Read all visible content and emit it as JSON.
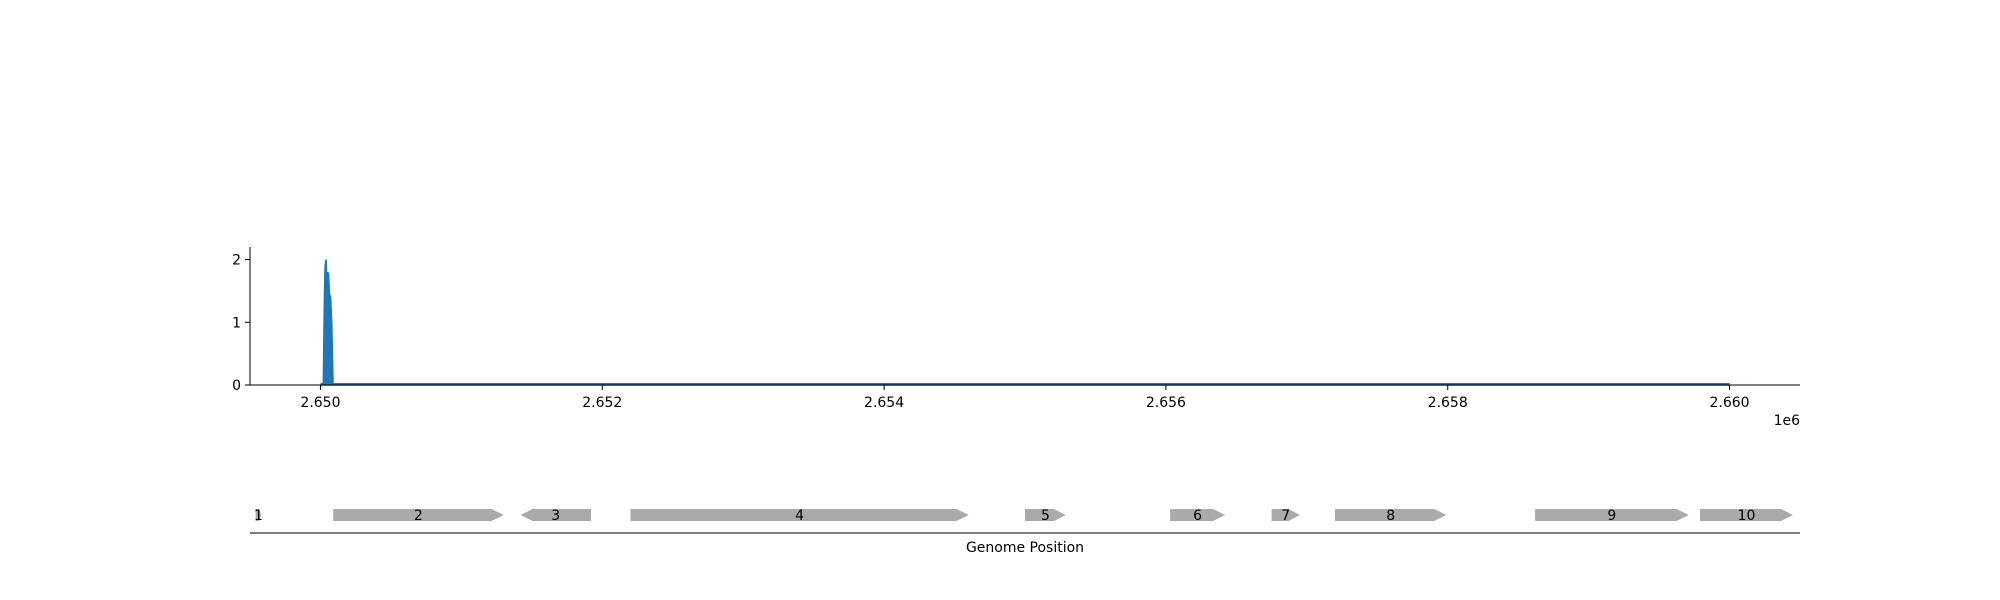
{
  "chart_data": [
    {
      "type": "area",
      "xlim": [
        2649500,
        2660500
      ],
      "ylim": [
        0,
        2.2
      ],
      "x_ticks": [
        2650000,
        2652000,
        2654000,
        2656000,
        2658000,
        2660000
      ],
      "x_tick_labels": [
        "2.650",
        "2.652",
        "2.654",
        "2.656",
        "2.658",
        "2.660"
      ],
      "x_offset_label": "1e6",
      "y_ticks": [
        0,
        1,
        2
      ],
      "y_tick_labels": [
        "0",
        "1",
        "2"
      ],
      "grid": false,
      "color": "#1f77b4",
      "series": [
        {
          "x": [
            2650000,
            2650020,
            2650028,
            2650033,
            2650040,
            2650046,
            2650052,
            2650058,
            2650064,
            2650072,
            2650080,
            2650090,
            2650100,
            2660000
          ],
          "values": [
            0,
            0,
            1.4,
            1.9,
            2.0,
            1.6,
            1.8,
            1.75,
            1.45,
            1.4,
            1.0,
            0,
            0,
            0
          ]
        }
      ]
    },
    {
      "type": "gene_track",
      "xlabel": "Genome Position",
      "xlim": [
        2649500,
        2660500
      ],
      "color": "#aaaaaa",
      "genes": [
        {
          "label": "1",
          "start": 2649540,
          "end": 2649580,
          "strand": "+"
        },
        {
          "label": "2",
          "start": 2650090,
          "end": 2651300,
          "strand": "+"
        },
        {
          "label": "3",
          "start": 2651420,
          "end": 2651920,
          "strand": "-"
        },
        {
          "label": "4",
          "start": 2652200,
          "end": 2654600,
          "strand": "+"
        },
        {
          "label": "5",
          "start": 2655000,
          "end": 2655290,
          "strand": "+"
        },
        {
          "label": "6",
          "start": 2656030,
          "end": 2656420,
          "strand": "+"
        },
        {
          "label": "7",
          "start": 2656750,
          "end": 2656950,
          "strand": "+"
        },
        {
          "label": "8",
          "start": 2657200,
          "end": 2657990,
          "strand": "+"
        },
        {
          "label": "9",
          "start": 2658620,
          "end": 2659710,
          "strand": "+"
        },
        {
          "label": "10",
          "start": 2659790,
          "end": 2660450,
          "strand": "+"
        }
      ]
    }
  ]
}
